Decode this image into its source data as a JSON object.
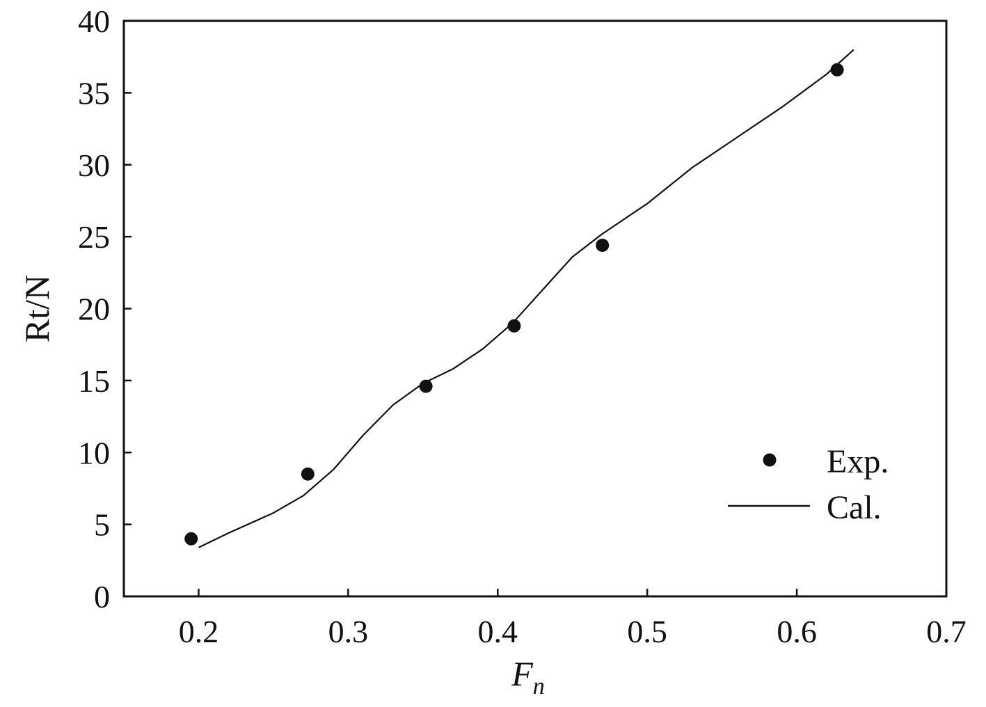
{
  "chart_data": {
    "type": "line",
    "title": "",
    "xlabel": "F",
    "xlabel_sub": "n",
    "ylabel": "Rt/N",
    "xlim": [
      0.15,
      0.7
    ],
    "ylim": [
      0,
      40
    ],
    "xticks": [
      0.2,
      0.3,
      0.4,
      0.5,
      0.6,
      0.7
    ],
    "xtick_labels": [
      "0.2",
      "0.3",
      "0.4",
      "0.5",
      "0.6",
      "0.7"
    ],
    "yticks": [
      0,
      5,
      10,
      15,
      20,
      25,
      30,
      35,
      40
    ],
    "ytick_labels": [
      "0",
      "5",
      "10",
      "15",
      "20",
      "25",
      "30",
      "35",
      "40"
    ],
    "grid": false,
    "legend_position": "lower-right",
    "series": [
      {
        "name": "Exp.",
        "style": "markers",
        "color": "#111111",
        "x": [
          0.195,
          0.273,
          0.352,
          0.411,
          0.47,
          0.627
        ],
        "y": [
          4.0,
          8.5,
          14.6,
          18.8,
          24.4,
          36.6
        ]
      },
      {
        "name": "Cal.",
        "style": "line",
        "color": "#111111",
        "x": [
          0.2,
          0.22,
          0.25,
          0.27,
          0.29,
          0.31,
          0.33,
          0.35,
          0.37,
          0.39,
          0.41,
          0.43,
          0.45,
          0.47,
          0.5,
          0.53,
          0.56,
          0.59,
          0.62,
          0.638
        ],
        "y": [
          3.4,
          4.4,
          5.8,
          7.0,
          8.8,
          11.2,
          13.3,
          14.8,
          15.8,
          17.2,
          19.0,
          21.3,
          23.6,
          25.2,
          27.3,
          29.8,
          31.9,
          34.0,
          36.3,
          38.0
        ]
      }
    ]
  }
}
